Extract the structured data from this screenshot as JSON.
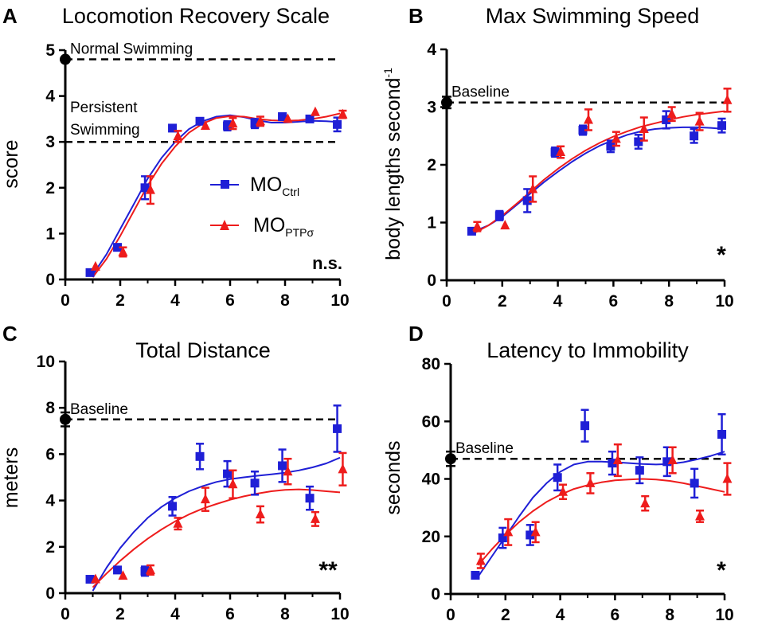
{
  "colors": {
    "ctrl": "#1f1fd6",
    "ptp": "#ee1c1c",
    "baseline": "#000000",
    "axis": "#000000"
  },
  "legend": {
    "ctrl": {
      "main": "MO",
      "sub": "Ctrl",
      "marker": "square-marker"
    },
    "ptp": {
      "main": "MO",
      "sub": "PTPσ",
      "marker": "triangle-marker"
    }
  },
  "chart_data": [
    {
      "type": "scatter",
      "letter": "A",
      "title": "Locomotion Recovery Scale",
      "xlabel": "",
      "ylabel": "score",
      "ylabel_sup": "",
      "xlim": [
        0,
        10
      ],
      "ylim": [
        0,
        5
      ],
      "xticks": [
        0,
        2,
        4,
        6,
        8,
        10
      ],
      "yticks": [
        0,
        1,
        2,
        3,
        4,
        5
      ],
      "reference_lines": [
        {
          "value": 4.8,
          "label": "Normal Swimming",
          "label2": "",
          "marker": true,
          "marker_err": 0
        },
        {
          "value": 3.0,
          "label": "Persistent",
          "label2": "Swimming",
          "marker": false,
          "marker_err": 0
        }
      ],
      "significance": "n.s.",
      "series": [
        {
          "name": "MO Ctrl",
          "color_key": "ctrl",
          "marker": "square",
          "x": [
            0.9,
            1.9,
            2.9,
            3.9,
            4.9,
            5.9,
            6.9,
            7.9,
            8.9,
            9.9
          ],
          "values": [
            0.15,
            0.7,
            2.0,
            3.3,
            3.45,
            3.35,
            3.4,
            3.55,
            3.5,
            3.38
          ],
          "errors": [
            0,
            0.07,
            0.25,
            0,
            0,
            0.1,
            0.1,
            0,
            0,
            0.15
          ],
          "fit_x": [
            1,
            1.5,
            2,
            2.5,
            3,
            3.5,
            4,
            4.5,
            5,
            5.5,
            6,
            6.5,
            7,
            7.5,
            8,
            8.5,
            9,
            9.5,
            10
          ],
          "fit_y": [
            0.1,
            0.55,
            1.1,
            1.65,
            2.2,
            2.65,
            3.0,
            3.28,
            3.45,
            3.55,
            3.58,
            3.54,
            3.47,
            3.42,
            3.42,
            3.44,
            3.46,
            3.45,
            3.43
          ]
        },
        {
          "name": "MO PTPσ",
          "color_key": "ptp",
          "marker": "triangle",
          "x": [
            1.1,
            2.1,
            3.1,
            4.1,
            5.1,
            6.1,
            7.1,
            8.1,
            9.1,
            10.1
          ],
          "values": [
            0.28,
            0.6,
            1.95,
            3.12,
            3.35,
            3.4,
            3.45,
            3.5,
            3.65,
            3.6
          ],
          "errors": [
            0,
            0.1,
            0.3,
            0.12,
            0,
            0.12,
            0.1,
            0,
            0,
            0.08
          ],
          "fit_x": [
            1,
            1.5,
            2,
            2.5,
            3,
            3.5,
            4,
            4.5,
            5,
            5.5,
            6,
            6.5,
            7,
            7.5,
            8,
            8.5,
            9,
            9.5,
            10
          ],
          "fit_y": [
            0.05,
            0.45,
            0.95,
            1.5,
            2.05,
            2.52,
            2.9,
            3.2,
            3.4,
            3.52,
            3.56,
            3.55,
            3.5,
            3.47,
            3.46,
            3.47,
            3.5,
            3.55,
            3.62
          ]
        }
      ]
    },
    {
      "type": "scatter",
      "letter": "B",
      "title": "Max Swimming Speed",
      "xlabel": "",
      "ylabel": "body lengths second",
      "ylabel_sup": "-1",
      "xlim": [
        0,
        10
      ],
      "ylim": [
        0,
        4
      ],
      "xticks": [
        0,
        2,
        4,
        6,
        8,
        10
      ],
      "yticks": [
        0,
        1,
        2,
        3,
        4
      ],
      "reference_lines": [
        {
          "value": 3.08,
          "label": "Baseline",
          "label2": "",
          "marker": true,
          "marker_err": 0.1
        }
      ],
      "significance": "*",
      "series": [
        {
          "name": "MO Ctrl",
          "color_key": "ctrl",
          "marker": "square",
          "x": [
            0.9,
            1.9,
            2.9,
            3.9,
            4.9,
            5.9,
            6.9,
            7.9,
            8.9,
            9.9
          ],
          "values": [
            0.85,
            1.12,
            1.38,
            2.22,
            2.6,
            2.32,
            2.4,
            2.78,
            2.5,
            2.68
          ],
          "errors": [
            0,
            0.08,
            0.2,
            0.08,
            0.08,
            0.1,
            0.12,
            0.15,
            0.12,
            0.12
          ],
          "fit_x": [
            1,
            1.5,
            2,
            2.5,
            3,
            3.5,
            4,
            4.5,
            5,
            5.5,
            6,
            6.5,
            7,
            7.5,
            8,
            8.5,
            9,
            9.5,
            10
          ],
          "fit_y": [
            0.85,
            0.95,
            1.1,
            1.3,
            1.5,
            1.7,
            1.88,
            2.05,
            2.2,
            2.33,
            2.43,
            2.52,
            2.58,
            2.62,
            2.64,
            2.65,
            2.65,
            2.64,
            2.62
          ]
        },
        {
          "name": "MO PTPσ",
          "color_key": "ptp",
          "marker": "triangle",
          "x": [
            1.1,
            2.1,
            3.1,
            4.1,
            5.1,
            6.1,
            7.1,
            8.1,
            9.1,
            10.1
          ],
          "values": [
            0.93,
            0.95,
            1.58,
            2.22,
            2.78,
            2.45,
            2.62,
            2.88,
            2.75,
            3.12
          ],
          "errors": [
            0.08,
            0,
            0.22,
            0.1,
            0.18,
            0.12,
            0.2,
            0.12,
            0.15,
            0.2
          ],
          "fit_x": [
            1,
            1.5,
            2,
            2.5,
            3,
            3.5,
            4,
            4.5,
            5,
            5.5,
            6,
            6.5,
            7,
            7.5,
            8,
            8.5,
            9,
            9.5,
            10
          ],
          "fit_y": [
            0.82,
            0.95,
            1.12,
            1.32,
            1.53,
            1.74,
            1.93,
            2.1,
            2.25,
            2.38,
            2.49,
            2.58,
            2.66,
            2.72,
            2.78,
            2.83,
            2.87,
            2.9,
            2.93
          ]
        }
      ]
    },
    {
      "type": "scatter",
      "letter": "C",
      "title": "Total Distance",
      "xlabel": "",
      "ylabel": "meters",
      "ylabel_sup": "",
      "xlim": [
        0,
        10
      ],
      "ylim": [
        0,
        10
      ],
      "xticks": [
        0,
        2,
        4,
        6,
        8,
        10
      ],
      "yticks": [
        0,
        2,
        4,
        6,
        8,
        10
      ],
      "reference_lines": [
        {
          "value": 7.5,
          "label": "Baseline",
          "label2": "",
          "marker": true,
          "marker_err": 0.3
        }
      ],
      "significance": "**",
      "series": [
        {
          "name": "MO Ctrl",
          "color_key": "ctrl",
          "marker": "square",
          "x": [
            0.9,
            1.9,
            2.9,
            3.9,
            4.9,
            5.9,
            6.9,
            7.9,
            8.9,
            9.9
          ],
          "values": [
            0.6,
            1.0,
            0.95,
            3.75,
            5.9,
            5.15,
            4.75,
            5.5,
            4.1,
            7.1
          ],
          "errors": [
            0,
            0,
            0.2,
            0.4,
            0.55,
            0.55,
            0.5,
            0.7,
            0.5,
            1.0
          ],
          "fit_x": [
            1,
            1.5,
            2,
            2.5,
            3,
            3.5,
            4,
            4.5,
            5,
            5.5,
            6,
            6.5,
            7,
            7.5,
            8,
            8.5,
            9,
            9.5,
            10
          ],
          "fit_y": [
            0.1,
            1.1,
            1.95,
            2.65,
            3.25,
            3.72,
            4.1,
            4.4,
            4.62,
            4.8,
            4.92,
            5.0,
            5.07,
            5.13,
            5.2,
            5.3,
            5.43,
            5.6,
            5.85
          ]
        },
        {
          "name": "MO PTPσ",
          "color_key": "ptp",
          "marker": "triangle",
          "x": [
            1.1,
            2.1,
            3.1,
            4.1,
            5.1,
            6.1,
            7.1,
            8.1,
            9.1,
            10.1
          ],
          "values": [
            0.6,
            0.75,
            1.0,
            3.0,
            4.05,
            4.7,
            3.4,
            5.25,
            3.2,
            5.35
          ],
          "errors": [
            0,
            0,
            0.2,
            0.25,
            0.5,
            0.6,
            0.35,
            0.55,
            0.3,
            0.7
          ],
          "fit_x": [
            1,
            1.5,
            2,
            2.5,
            3,
            3.5,
            4,
            4.5,
            5,
            5.5,
            6,
            6.5,
            7,
            7.5,
            8,
            8.5,
            9,
            9.5,
            10
          ],
          "fit_y": [
            0.25,
            0.85,
            1.4,
            1.9,
            2.35,
            2.75,
            3.1,
            3.4,
            3.65,
            3.85,
            4.03,
            4.18,
            4.3,
            4.4,
            4.46,
            4.48,
            4.45,
            4.4,
            4.35
          ]
        }
      ]
    },
    {
      "type": "scatter",
      "letter": "D",
      "title": "Latency to Immobility",
      "xlabel": "",
      "ylabel": "seconds",
      "ylabel_sup": "",
      "xlim": [
        0,
        10
      ],
      "ylim": [
        0,
        80
      ],
      "xticks": [
        0,
        2,
        4,
        6,
        8,
        10
      ],
      "yticks": [
        0,
        20,
        40,
        60,
        80
      ],
      "reference_lines": [
        {
          "value": 47,
          "label": "Baseline",
          "label2": "",
          "marker": true,
          "marker_err": 2.5
        }
      ],
      "significance": "*",
      "series": [
        {
          "name": "MO Ctrl",
          "color_key": "ctrl",
          "marker": "square",
          "x": [
            0.9,
            1.9,
            2.9,
            3.9,
            4.9,
            5.9,
            6.9,
            7.9,
            8.9,
            9.9
          ],
          "values": [
            6.5,
            19.5,
            20.5,
            40.5,
            58.5,
            45.5,
            43.0,
            46.0,
            38.5,
            55.5
          ],
          "errors": [
            0,
            3.5,
            3.5,
            4.5,
            5.5,
            4.0,
            4.5,
            5.0,
            5.0,
            7.0
          ],
          "fit_x": [
            1,
            1.5,
            2,
            2.5,
            3,
            3.5,
            4,
            4.5,
            5,
            5.5,
            6,
            6.5,
            7,
            7.5,
            8,
            8.5,
            9,
            9.5,
            10
          ],
          "fit_y": [
            6,
            13,
            20,
            27,
            33.5,
            38.5,
            42.5,
            45,
            46,
            46,
            45.8,
            45.5,
            45.2,
            45,
            45.2,
            45.8,
            46.8,
            48,
            49.5
          ]
        },
        {
          "name": "MO PTPσ",
          "color_key": "ptp",
          "marker": "triangle",
          "x": [
            1.1,
            2.1,
            3.1,
            4.1,
            5.1,
            6.1,
            7.1,
            8.1,
            9.1,
            10.1
          ],
          "values": [
            11.5,
            21.5,
            21.5,
            35.5,
            38.5,
            46.5,
            31.5,
            46.5,
            27.0,
            40.0
          ],
          "errors": [
            2.5,
            4.5,
            3.5,
            2.5,
            3.5,
            5.5,
            2.5,
            4.5,
            2.0,
            5.5
          ],
          "fit_x": [
            1,
            1.5,
            2,
            2.5,
            3,
            3.5,
            4,
            4.5,
            5,
            5.5,
            6,
            6.5,
            7,
            7.5,
            8,
            8.5,
            9,
            9.5,
            10
          ],
          "fit_y": [
            10,
            15.5,
            20.5,
            25,
            28.8,
            32,
            34.5,
            36.5,
            37.8,
            38.8,
            39.5,
            39.8,
            40,
            39.8,
            39.3,
            38.5,
            37.5,
            36.5,
            35.5
          ]
        }
      ]
    }
  ]
}
